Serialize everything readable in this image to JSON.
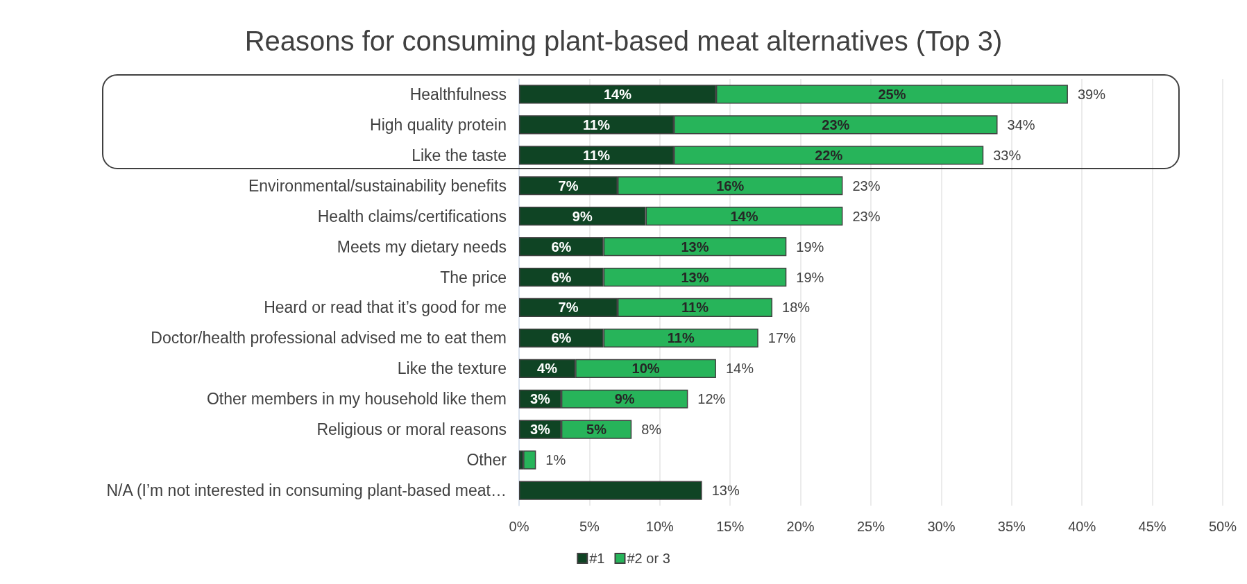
{
  "chart_data": {
    "type": "bar",
    "title": "Reasons for consuming plant-based meat alternatives (Top 3)",
    "orientation": "horizontal",
    "stacked": true,
    "categories": [
      "Healthfulness",
      "High quality protein",
      "Like the taste",
      "Environmental/sustainability benefits",
      "Health claims/certifications",
      "Meets my dietary needs",
      "The price",
      "Heard or read that it’s good for me",
      "Doctor/health professional advised me to eat them",
      "Like the texture",
      "Other members in my household like them",
      "Religious or moral reasons",
      "Other",
      "N/A (I’m not interested in consuming plant-based meat…"
    ],
    "series": [
      {
        "name": "#1",
        "color": "#0f4424",
        "values": [
          14,
          11,
          11,
          7,
          9,
          6,
          6,
          7,
          6,
          4,
          3,
          3,
          0.3,
          13
        ],
        "value_labels": [
          "14%",
          "11%",
          "11%",
          "7%",
          "9%",
          "6%",
          "6%",
          "7%",
          "6%",
          "4%",
          "3%",
          "3%",
          null,
          null
        ]
      },
      {
        "name": "#2 or 3",
        "color": "#27b45a",
        "values": [
          25,
          23,
          22,
          16,
          14,
          13,
          13,
          11,
          11,
          10,
          9,
          5,
          0.9,
          null
        ],
        "value_labels": [
          "25%",
          "23%",
          "22%",
          "16%",
          "14%",
          "13%",
          "13%",
          "11%",
          "11%",
          "10%",
          "9%",
          "5%",
          null,
          null
        ]
      }
    ],
    "totals": [
      "39%",
      "34%",
      "33%",
      "23%",
      "23%",
      "19%",
      "19%",
      "18%",
      "17%",
      "14%",
      "12%",
      "8%",
      "1%",
      "13%"
    ],
    "xlim": [
      0,
      50
    ],
    "xticks": [
      {
        "value": 0,
        "label": "0%"
      },
      {
        "value": 5,
        "label": "5%"
      },
      {
        "value": 10,
        "label": "10%"
      },
      {
        "value": 15,
        "label": "15%"
      },
      {
        "value": 20,
        "label": "20%"
      },
      {
        "value": 25,
        "label": "25%"
      },
      {
        "value": 30,
        "label": "30%"
      },
      {
        "value": 35,
        "label": "35%"
      },
      {
        "value": 40,
        "label": "40%"
      },
      {
        "value": 45,
        "label": "45%"
      },
      {
        "value": 50,
        "label": "50%"
      }
    ],
    "grid": "x",
    "legend": "bottom"
  }
}
